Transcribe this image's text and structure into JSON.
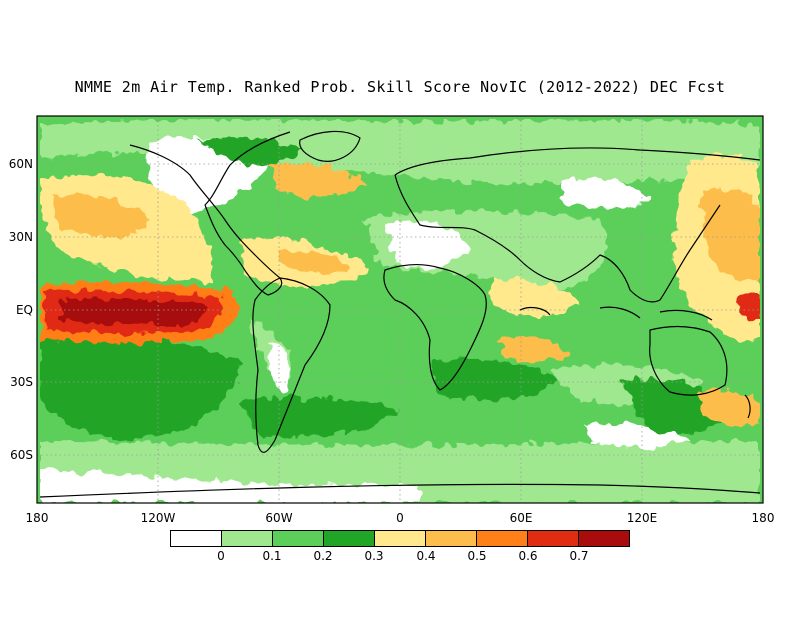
{
  "title": "NMME 2m Air Temp. Ranked Prob. Skill Score NovIC (2012-2022) DEC Fcst",
  "map": {
    "lat_labels": [
      "60N",
      "30N",
      "EQ",
      "30S",
      "60S"
    ],
    "lon_labels": [
      "180",
      "120W",
      "60W",
      "0",
      "60E",
      "120E",
      "180"
    ],
    "grid_style": "dotted",
    "coastlines": true
  },
  "colorbar": {
    "colors": [
      "#ffffff",
      "#a0e890",
      "#5ccf5a",
      "#21a526",
      "#ffe98c",
      "#fdbd4c",
      "#ff7f18",
      "#e02c12",
      "#a80c0c"
    ],
    "ticks": [
      "0",
      "0.1",
      "0.2",
      "0.3",
      "0.4",
      "0.5",
      "0.6",
      "0.7"
    ]
  }
}
